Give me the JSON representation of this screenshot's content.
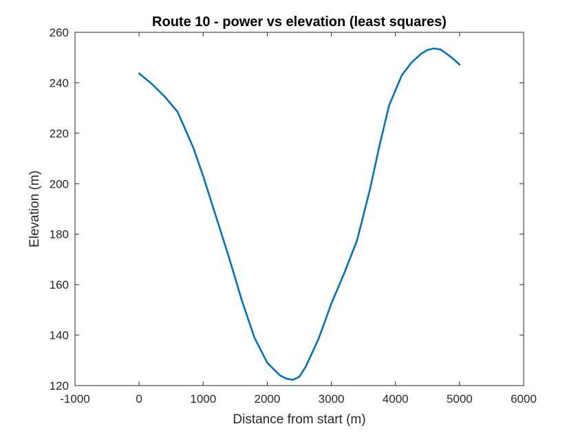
{
  "chart_data": {
    "type": "line",
    "title": "Route 10 - power vs elevation (least squares)",
    "xlabel": "Distance from start (m)",
    "ylabel": "Elevation (m)",
    "xlim": [
      -1000,
      6000
    ],
    "ylim": [
      120,
      260
    ],
    "xticks": [
      -1000,
      0,
      1000,
      2000,
      3000,
      4000,
      5000,
      6000
    ],
    "yticks": [
      120,
      140,
      160,
      180,
      200,
      220,
      240,
      260
    ],
    "xtick_labels": [
      "-1000",
      "0",
      "1000",
      "2000",
      "3000",
      "4000",
      "5000",
      "6000"
    ],
    "ytick_labels": [
      "120",
      "140",
      "160",
      "180",
      "200",
      "220",
      "240",
      "260"
    ],
    "grid": false,
    "box": true,
    "series": [
      {
        "color": "#0072BD",
        "x": [
          0,
          200,
          400,
          600,
          730,
          850,
          1000,
          1200,
          1400,
          1600,
          1800,
          2000,
          2200,
          2300,
          2400,
          2500,
          2600,
          2800,
          3000,
          3200,
          3400,
          3600,
          3750,
          3900,
          4100,
          4250,
          4400,
          4500,
          4600,
          4700,
          4800,
          4900,
          5000
        ],
        "y": [
          243.7,
          239.5,
          234.5,
          228.5,
          221.0,
          214.0,
          203.0,
          187.0,
          171.0,
          154.0,
          139.0,
          129.0,
          124.0,
          122.7,
          122.3,
          123.5,
          127.5,
          138.5,
          152.5,
          164.5,
          177.5,
          197.5,
          215.0,
          231.0,
          243.0,
          248.0,
          251.5,
          253.0,
          253.6,
          253.2,
          251.5,
          249.5,
          247.2
        ]
      }
    ]
  }
}
